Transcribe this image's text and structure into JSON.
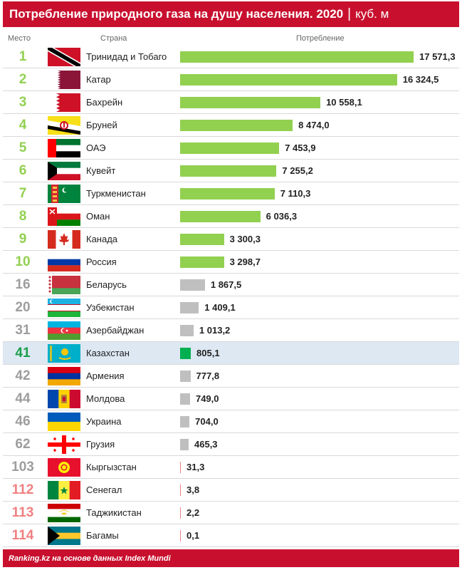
{
  "header": {
    "title": "Потребление природного газа на душу населения. 2020",
    "separator": "|",
    "unit": "куб. м"
  },
  "columns": {
    "rank": "Место",
    "country": "Страна",
    "value": "Потребление"
  },
  "footer": {
    "source": "Ranking.kz на основе данных Index Mundi"
  },
  "colors": {
    "top10": "#92d050",
    "other": "#bfbfbf",
    "kazakhstan": "#00b050",
    "rank_low": "#f08080",
    "brand": "#c8102e",
    "highlight_row": "#dde8f3"
  },
  "chart_data": {
    "type": "bar",
    "orientation": "horizontal",
    "title": "Потребление природного газа на душу населения. 2020",
    "unit": "куб. м",
    "xlim": [
      0,
      17571.3
    ],
    "rows": [
      {
        "rank": "1",
        "country": "Тринидад и Тобаго",
        "value": 17571.3,
        "label": "17 571,3",
        "flag": "trinidad-and-tobago",
        "group": "top"
      },
      {
        "rank": "2",
        "country": "Катар",
        "value": 16324.5,
        "label": "16 324,5",
        "flag": "qatar",
        "group": "top"
      },
      {
        "rank": "3",
        "country": "Бахрейн",
        "value": 10558.1,
        "label": "10 558,1",
        "flag": "bahrain",
        "group": "top"
      },
      {
        "rank": "4",
        "country": "Бруней",
        "value": 8474.0,
        "label": "8 474,0",
        "flag": "brunei",
        "group": "top"
      },
      {
        "rank": "5",
        "country": "ОАЭ",
        "value": 7453.9,
        "label": "7 453,9",
        "flag": "uae",
        "group": "top"
      },
      {
        "rank": "6",
        "country": "Кувейт",
        "value": 7255.2,
        "label": "7 255,2",
        "flag": "kuwait",
        "group": "top"
      },
      {
        "rank": "7",
        "country": "Туркменистан",
        "value": 7110.3,
        "label": "7 110,3",
        "flag": "turkmenistan",
        "group": "top"
      },
      {
        "rank": "8",
        "country": "Оман",
        "value": 6036.3,
        "label": "6 036,3",
        "flag": "oman",
        "group": "top"
      },
      {
        "rank": "9",
        "country": "Канада",
        "value": 3300.3,
        "label": "3 300,3",
        "flag": "canada",
        "group": "top"
      },
      {
        "rank": "10",
        "country": "Россия",
        "value": 3298.7,
        "label": "3 298,7",
        "flag": "russia",
        "group": "top"
      },
      {
        "rank": "16",
        "country": "Беларусь",
        "value": 1867.5,
        "label": "1 867,5",
        "flag": "belarus",
        "group": "mid"
      },
      {
        "rank": "20",
        "country": "Узбекистан",
        "value": 1409.1,
        "label": "1 409,1",
        "flag": "uzbekistan",
        "group": "mid"
      },
      {
        "rank": "31",
        "country": "Азербайджан",
        "value": 1013.2,
        "label": "1 013,2",
        "flag": "azerbaijan",
        "group": "mid"
      },
      {
        "rank": "41",
        "country": "Казахстан",
        "value": 805.1,
        "label": "805,1",
        "flag": "kazakhstan",
        "group": "kz"
      },
      {
        "rank": "42",
        "country": "Армения",
        "value": 777.8,
        "label": "777,8",
        "flag": "armenia",
        "group": "mid"
      },
      {
        "rank": "44",
        "country": "Молдова",
        "value": 749.0,
        "label": "749,0",
        "flag": "moldova",
        "group": "mid"
      },
      {
        "rank": "46",
        "country": "Украина",
        "value": 704.0,
        "label": "704,0",
        "flag": "ukraine",
        "group": "mid"
      },
      {
        "rank": "62",
        "country": "Грузия",
        "value": 465.3,
        "label": "465,3",
        "flag": "georgia",
        "group": "mid"
      },
      {
        "rank": "103",
        "country": "Кыргызстан",
        "value": 31.3,
        "label": "31,3",
        "flag": "kyrgyzstan",
        "group": "mid"
      },
      {
        "rank": "112",
        "country": "Сенегал",
        "value": 3.8,
        "label": "3,8",
        "flag": "senegal",
        "group": "low"
      },
      {
        "rank": "113",
        "country": "Таджикистан",
        "value": 2.2,
        "label": "2,2",
        "flag": "tajikistan",
        "group": "low"
      },
      {
        "rank": "114",
        "country": "Багамы",
        "value": 0.1,
        "label": "0,1",
        "flag": "bahamas",
        "group": "low"
      }
    ]
  }
}
